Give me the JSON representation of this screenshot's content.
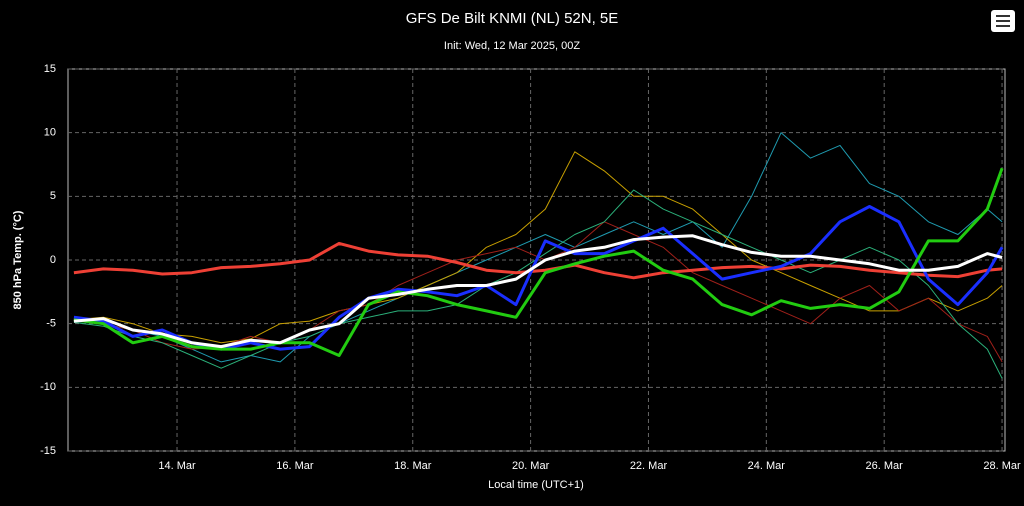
{
  "chart_data": {
    "type": "line",
    "title": "GFS De Bilt KNMI (NL) 52N, 5E",
    "subtitle": "Init: Wed, 12 Mar 2025, 00Z",
    "y_label": "850 hPa Temp. (°C)",
    "x_label": "Local time (UTC+1)",
    "x": [
      12.25,
      12.75,
      13.25,
      13.75,
      14.25,
      14.75,
      15.25,
      15.75,
      16.25,
      16.75,
      17.25,
      17.75,
      18.25,
      18.75,
      19.25,
      19.75,
      20.25,
      20.75,
      21.25,
      21.75,
      22.25,
      22.75,
      23.25,
      23.75,
      24.25,
      24.75,
      25.25,
      25.75,
      26.25,
      26.75,
      27.25,
      27.75,
      28.0
    ],
    "xlim": [
      12.15,
      28.05
    ],
    "xticks": [
      {
        "value": 14,
        "label": "14. Mar"
      },
      {
        "value": 16,
        "label": "16. Mar"
      },
      {
        "value": 18,
        "label": "18. Mar"
      },
      {
        "value": 20,
        "label": "20. Mar"
      },
      {
        "value": 22,
        "label": "22. Mar"
      },
      {
        "value": 24,
        "label": "24. Mar"
      },
      {
        "value": 26,
        "label": "26. Mar"
      },
      {
        "value": 28,
        "label": "28. Mar"
      }
    ],
    "ylim": [
      -15,
      15
    ],
    "yticks": [
      15,
      10,
      5,
      0,
      -5,
      -10,
      -15
    ],
    "grid": true,
    "series": [
      {
        "color": "#1f9bb0",
        "width": 1,
        "values": [
          -4.8,
          -5,
          -5.5,
          -6,
          -7,
          -8,
          -7.5,
          -8,
          -6,
          -5,
          -4,
          -3,
          -2,
          -1,
          0,
          1,
          2,
          1,
          2,
          3,
          2,
          3,
          1,
          5,
          10,
          8,
          9,
          6,
          5,
          3,
          2,
          4,
          3
        ]
      },
      {
        "color": "#c8a000",
        "width": 1,
        "values": [
          -4.7,
          -4.5,
          -5,
          -5.8,
          -6,
          -6.5,
          -6.2,
          -5,
          -4.8,
          -4,
          -3.5,
          -3,
          -2,
          -1,
          1,
          2,
          4,
          8.5,
          7,
          5,
          5,
          4,
          2,
          0,
          -1,
          -2,
          -3,
          -4,
          -4,
          -3,
          -4,
          -3,
          -2
        ]
      },
      {
        "color": "#a0201a",
        "width": 1,
        "values": [
          -4.6,
          -5,
          -5.5,
          -6.5,
          -7,
          -6.8,
          -6,
          -6.5,
          -5.5,
          -4,
          -3.5,
          -2,
          -1,
          0,
          0.5,
          1,
          0,
          1,
          3,
          2,
          1,
          -1,
          -2,
          -3,
          -4,
          -5,
          -3,
          -2,
          -4,
          -3,
          -5,
          -6,
          -8
        ]
      },
      {
        "color": "#2bb07a",
        "width": 1,
        "values": [
          -4.9,
          -5.2,
          -6,
          -6.5,
          -7.5,
          -8.5,
          -7.5,
          -6.5,
          -6,
          -5,
          -4.5,
          -4,
          -4,
          -3.5,
          -2,
          -1,
          0.5,
          2,
          3,
          5.5,
          4,
          3,
          2,
          1,
          0,
          -1,
          0,
          1,
          0,
          -2,
          -5,
          -7,
          -9.3
        ]
      },
      {
        "color": "#ee4035",
        "width": 3,
        "values": [
          -1.0,
          -0.7,
          -0.8,
          -1.1,
          -1.0,
          -0.6,
          -0.5,
          -0.3,
          0,
          1.3,
          0.7,
          0.4,
          0.3,
          -0.2,
          -0.8,
          -1.0,
          -0.8,
          -0.4,
          -1.0,
          -1.4,
          -1.0,
          -0.8,
          -0.6,
          -0.5,
          -0.7,
          -0.4,
          -0.5,
          -0.8,
          -1.0,
          -1.2,
          -1.3,
          -0.8,
          -0.7
        ]
      },
      {
        "color": "#1a2fff",
        "width": 3,
        "values": [
          -4.5,
          -4.8,
          -6,
          -5.5,
          -6.5,
          -7,
          -6.5,
          -7,
          -6.8,
          -4.5,
          -3,
          -2.3,
          -2.5,
          -2.8,
          -2,
          -3.5,
          1.5,
          0.5,
          0.5,
          1.5,
          2.5,
          0.5,
          -1.5,
          -1,
          -0.5,
          0.5,
          3,
          4.2,
          3,
          -1.5,
          -3.5,
          -1,
          1
        ]
      },
      {
        "color": "#22cc11",
        "width": 3,
        "values": [
          -4.7,
          -5,
          -6.5,
          -6,
          -6.8,
          -7,
          -7,
          -6.5,
          -6.5,
          -7.5,
          -3.5,
          -2.5,
          -2.8,
          -3.5,
          -4,
          -4.5,
          -1,
          -0.3,
          0.3,
          0.7,
          -0.8,
          -1.5,
          -3.5,
          -4.3,
          -3.2,
          -3.8,
          -3.5,
          -3.8,
          -2.5,
          1.5,
          1.5,
          4,
          7.2
        ]
      },
      {
        "color": "#ffffff",
        "width": 3,
        "values": [
          -4.8,
          -4.6,
          -5.5,
          -5.8,
          -6.5,
          -6.8,
          -6.3,
          -6.5,
          -5.5,
          -5,
          -3,
          -2.7,
          -2.3,
          -2,
          -2,
          -1.5,
          0,
          0.7,
          1.0,
          1.6,
          1.8,
          1.9,
          1.2,
          0.6,
          0.3,
          0.3,
          0,
          -0.3,
          -0.8,
          -0.8,
          -0.5,
          0.5,
          0.2
        ]
      }
    ]
  }
}
